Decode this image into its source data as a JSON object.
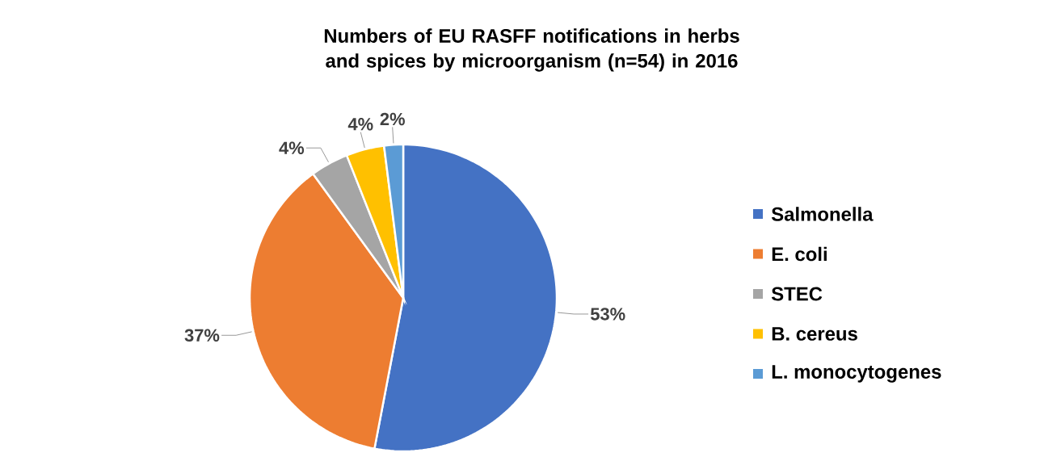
{
  "chart_data": {
    "type": "pie",
    "title": "Numbers of EU RASFF notifications in herbs and spices by microorganism (n=54) in 2016",
    "categories": [
      "Salmonella",
      "E. coli",
      "STEC",
      "B. cereus",
      "L. monocytogenes"
    ],
    "values": [
      53,
      37,
      4,
      4,
      2
    ],
    "value_labels": [
      "53%",
      "37%",
      "4%",
      "4%",
      "2%"
    ],
    "colors": [
      "#4472c4",
      "#ed7d31",
      "#a5a5a5",
      "#ffc000",
      "#5b9bd5"
    ],
    "legend": "right"
  }
}
